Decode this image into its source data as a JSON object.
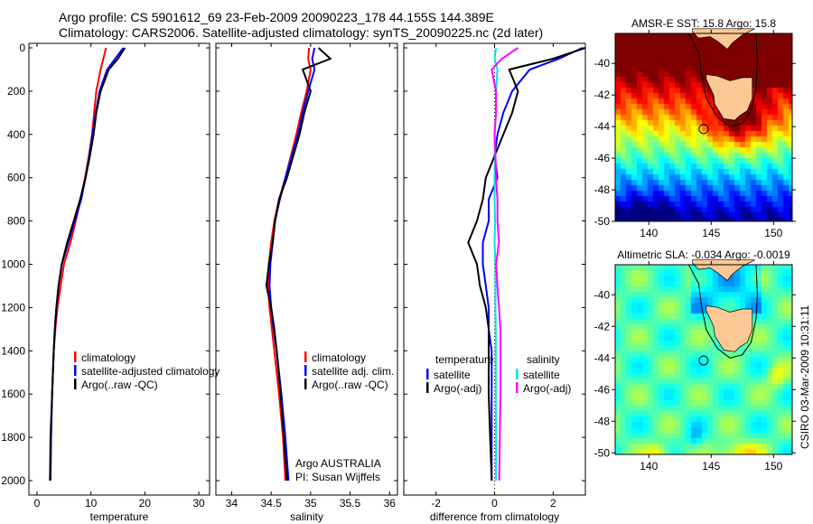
{
  "header": {
    "line1": "Argo profile: CS 5901612_69 23-Feb-2009 20090223_178 44.155S 144.389E",
    "line2": "Climatology: CARS2006. Satellite-adjusted climatology: synTS_20090225.nc (2d later)"
  },
  "stamp": "CSIRO 03-Mar-2009 10:31:11",
  "colors": {
    "climatology": "#ff0000",
    "satellite": "#0000ff",
    "argo": "#000000",
    "sal_sat": "#00e5e5",
    "sal_argo": "#ff00ff"
  },
  "chart_data": [
    {
      "type": "line",
      "xlabel": "temperature",
      "xlim": [
        -1.5,
        32
      ],
      "ylim": [
        0,
        2000
      ],
      "yticks": [
        "0",
        "200",
        "400",
        "600",
        "800",
        "1000",
        "1200",
        "1400",
        "1600",
        "1800",
        "2000"
      ],
      "xticks": [
        "0",
        "10",
        "20",
        "30"
      ],
      "legend": [
        "climatology",
        "satellite-adjusted climatology",
        "Argo(..raw -QC)"
      ],
      "depth": [
        0,
        50,
        100,
        200,
        300,
        400,
        500,
        600,
        700,
        800,
        900,
        1000,
        1100,
        1200,
        1300,
        1400,
        1600,
        1800,
        2000
      ],
      "series": [
        {
          "name": "climatology",
          "values": [
            12.8,
            12.3,
            11.8,
            11.0,
            10.6,
            10.2,
            9.6,
            8.9,
            8.1,
            7.2,
            6.2,
            5.0,
            4.4,
            3.8,
            3.4,
            3.1,
            2.8,
            2.6,
            2.5
          ]
        },
        {
          "name": "satellite-adjusted climatology",
          "values": [
            16.0,
            14.5,
            13.0,
            11.6,
            10.9,
            10.3,
            9.7,
            9.0,
            8.2,
            7.0,
            5.8,
            4.6,
            4.0,
            3.6,
            3.3,
            3.1,
            2.8,
            2.6,
            2.5
          ]
        },
        {
          "name": "Argo(..raw -QC)",
          "values": [
            16.3,
            15.0,
            13.3,
            11.8,
            11.0,
            10.5,
            9.8,
            9.0,
            8.0,
            6.8,
            5.6,
            4.6,
            4.0,
            3.6,
            3.3,
            3.1,
            2.8,
            2.5,
            2.4
          ]
        }
      ]
    },
    {
      "type": "line",
      "xlabel": "salinity",
      "xlim": [
        33.8,
        36.1
      ],
      "ylim": [
        0,
        2000
      ],
      "xticks": [
        "34",
        "34.5",
        "35",
        "35.5",
        "36"
      ],
      "legend": [
        "climatology",
        "satellite adj. clim.",
        "Argo(..raw -QC)"
      ],
      "annotation": [
        "Argo AUSTRALIA",
        "PI: Susan Wijffels"
      ],
      "depth": [
        0,
        50,
        100,
        200,
        300,
        400,
        500,
        600,
        700,
        800,
        900,
        1000,
        1100,
        1200,
        1300,
        1400,
        1600,
        1800,
        2000
      ],
      "series": [
        {
          "name": "climatology",
          "values": [
            34.98,
            34.97,
            35.0,
            34.95,
            34.88,
            34.82,
            34.75,
            34.68,
            34.6,
            34.54,
            34.5,
            34.47,
            34.46,
            34.48,
            34.51,
            34.54,
            34.6,
            34.65,
            34.68
          ]
        },
        {
          "name": "satellite adj. clim.",
          "values": [
            35.05,
            35.02,
            35.05,
            34.97,
            34.9,
            34.84,
            34.76,
            34.68,
            34.61,
            34.55,
            34.52,
            34.49,
            34.48,
            34.5,
            34.53,
            34.57,
            34.63,
            34.68,
            34.72
          ]
        },
        {
          "name": "Argo(..raw -QC)",
          "values": [
            35.1,
            35.25,
            34.9,
            35.0,
            34.92,
            34.86,
            34.78,
            34.7,
            34.6,
            34.55,
            34.52,
            34.47,
            34.44,
            34.5,
            34.54,
            34.57,
            34.62,
            34.66,
            34.7
          ]
        }
      ]
    },
    {
      "type": "line",
      "xlabel": "difference from climatology",
      "xlim": [
        -3.1,
        3.1
      ],
      "ylim": [
        0,
        2000
      ],
      "xticks": [
        "-2",
        "0",
        "2"
      ],
      "legend_groups": [
        {
          "title": "temperature",
          "items": [
            "satellite",
            "Argo(-adj)"
          ]
        },
        {
          "title": "salinity",
          "items": [
            "satellite",
            "Argo(-adj)"
          ]
        }
      ],
      "depth": [
        0,
        50,
        100,
        200,
        300,
        400,
        500,
        600,
        700,
        800,
        900,
        1000,
        1100,
        1200,
        1300,
        1400,
        1600,
        1800,
        2000
      ],
      "series": [
        {
          "name": "temperature satellite",
          "values": [
            3.0,
            2.2,
            1.2,
            0.6,
            0.3,
            0.1,
            0.0,
            0.1,
            -0.2,
            -0.2,
            -0.4,
            -0.4,
            -0.3,
            -0.2,
            -0.2,
            -0.1,
            -0.1,
            -0.1,
            -0.1
          ]
        },
        {
          "name": "temperature Argo(-adj)",
          "values": [
            3.1,
            2.0,
            0.5,
            0.8,
            0.6,
            0.3,
            0.0,
            -0.3,
            -0.4,
            -0.6,
            -0.9,
            -0.6,
            -0.5,
            -0.3,
            -0.2,
            -0.2,
            -0.2,
            -0.15,
            -0.1
          ]
        },
        {
          "name": "salinity satellite",
          "values": [
            0.05,
            0.0,
            0.1,
            0.05,
            0.05,
            0.0,
            0.02,
            0.0,
            0.0,
            0.02,
            0.0,
            0.03,
            0.03,
            0.03,
            0.04,
            0.04,
            0.04,
            0.05,
            0.05
          ]
        },
        {
          "name": "salinity Argo(-adj)",
          "values": [
            0.8,
            0.25,
            -0.1,
            0.05,
            0.05,
            0.0,
            0.03,
            0.05,
            0.1,
            0.1,
            0.15,
            0.05,
            0.1,
            0.15,
            0.2,
            0.2,
            0.2,
            0.18,
            0.16
          ]
        }
      ]
    },
    {
      "type": "heatmap",
      "title": "AMSR-E SST: 15.8 Argo: 15.8",
      "xlim": [
        137.3,
        151.5
      ],
      "ylim": [
        -50,
        -38.1
      ],
      "xticks": [
        "140",
        "145",
        "150"
      ],
      "yticks": [
        "-40",
        "-42",
        "-44",
        "-46",
        "-48",
        "-50"
      ],
      "marker": [
        144.389,
        -44.155
      ]
    },
    {
      "type": "heatmap",
      "title": "Altimetric SLA: -0.034 Argo: -0.0019",
      "xlim": [
        137.3,
        151.5
      ],
      "ylim": [
        -50.1,
        -38.1
      ],
      "xticks": [
        "140",
        "145",
        "150"
      ],
      "yticks": [
        "-40",
        "-42",
        "-44",
        "-46",
        "-48",
        "-50"
      ],
      "marker": [
        144.389,
        -44.155
      ]
    }
  ]
}
